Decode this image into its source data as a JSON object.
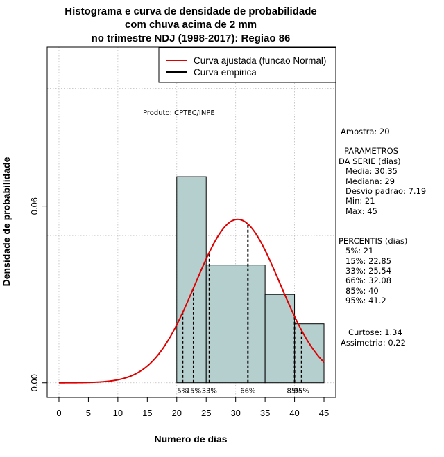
{
  "chart_data": {
    "type": "bar",
    "title_lines": [
      "Histograma e curva de densidade de probabilidade",
      "com chuva acima de 2 mm",
      "no trimestre NDJ (1998-2017): Regiao 86"
    ],
    "xlabel": "Numero de dias",
    "ylabel": "Densidade de probabilidade",
    "xlim": [
      -2,
      47
    ],
    "ylim": [
      -0.005,
      0.114
    ],
    "x_ticks": [
      0,
      5,
      10,
      15,
      20,
      25,
      30,
      35,
      40,
      45
    ],
    "x_tick_labels": [
      "0",
      "5",
      "10",
      "15",
      "20",
      "25",
      "30",
      "35",
      "40",
      "45"
    ],
    "y_ticks": [
      0.0,
      0.06
    ],
    "y_tick_labels": [
      "0.00",
      "0.06"
    ],
    "grid_x": [
      0,
      10,
      20,
      30,
      40
    ],
    "grid_y": [
      0.0,
      0.05,
      0.1
    ],
    "histogram": {
      "bin_edges": [
        20,
        25,
        35,
        40,
        45
      ],
      "densities": [
        0.07,
        0.04,
        0.03,
        0.02
      ],
      "fill": "#b5cece"
    },
    "normal_fit": {
      "mean": 30.35,
      "sd": 7.19,
      "x_range": [
        0,
        45
      ],
      "color": "#dd0000"
    },
    "percentiles": [
      {
        "x": 21,
        "label": "5%"
      },
      {
        "x": 22.85,
        "label": "15%"
      },
      {
        "x": 25.54,
        "label": "33%"
      },
      {
        "x": 32.08,
        "label": "66%"
      },
      {
        "x": 40,
        "label": "85%"
      },
      {
        "x": 41.2,
        "label": "95%"
      }
    ],
    "legend": {
      "position": "top-right",
      "entries": [
        {
          "label": "Curva ajustada (funcao Normal)",
          "color": "#dd0000"
        },
        {
          "label": "Curva empirica",
          "color": "#000000"
        }
      ]
    },
    "annotation": "Produto: CPTEC/INPE"
  },
  "sidebar": {
    "amostra": "Amostra: 20",
    "param_title_1": "PARAMETROS",
    "param_title_2": "DA SERIE (dias)",
    "media": "Media: 30.35",
    "mediana": "Mediana: 29",
    "desvio": "Desvio padrao: 7.19",
    "min": "Min: 21",
    "max": "Max: 45",
    "percentis_title": "PERCENTIS (dias)",
    "p5": "5%: 21",
    "p15": "15%: 22.85",
    "p33": "33%: 25.54",
    "p66": "66%: 32.08",
    "p85": "85%: 40",
    "p95": "95%: 41.2",
    "curtose": "Curtose: 1.34",
    "assimetria": "Assimetria: 0.22"
  }
}
